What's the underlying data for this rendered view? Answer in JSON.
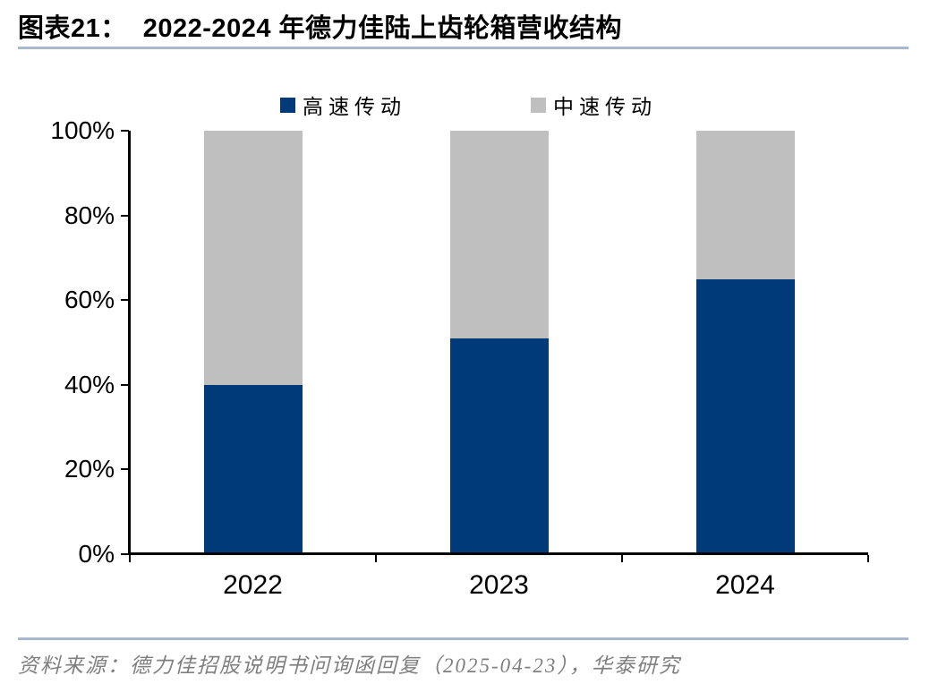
{
  "header": {
    "label": "图表21：",
    "title": "2022-2024 年德力佳陆上齿轮箱营收结构"
  },
  "footer": {
    "source": "资料来源：德力佳招股说明书问询函回复（2025-04-23），华泰研究"
  },
  "colors": {
    "rule_blue": "#A7B8CF",
    "axis_black": "#000000",
    "high_speed_blue": "#003A78",
    "mid_speed_gray": "#BFBFBF",
    "source_gray": "#7F7F7F"
  },
  "chart_data": {
    "type": "bar",
    "stacked": true,
    "percent_stacked": true,
    "title": "2022-2024 年德力佳陆上齿轮箱营收结构",
    "categories": [
      "2022",
      "2023",
      "2024"
    ],
    "series": [
      {
        "name": "高速传动",
        "color": "#003A78",
        "values": [
          40,
          51,
          65
        ]
      },
      {
        "name": "中速传动",
        "color": "#BFBFBF",
        "values": [
          60,
          49,
          35
        ]
      }
    ],
    "xlabel": "",
    "ylabel": "",
    "ylim": [
      0,
      100
    ],
    "yticks": [
      "0%",
      "20%",
      "40%",
      "60%",
      "80%",
      "100%"
    ],
    "grid": false,
    "legend_position": "top"
  }
}
